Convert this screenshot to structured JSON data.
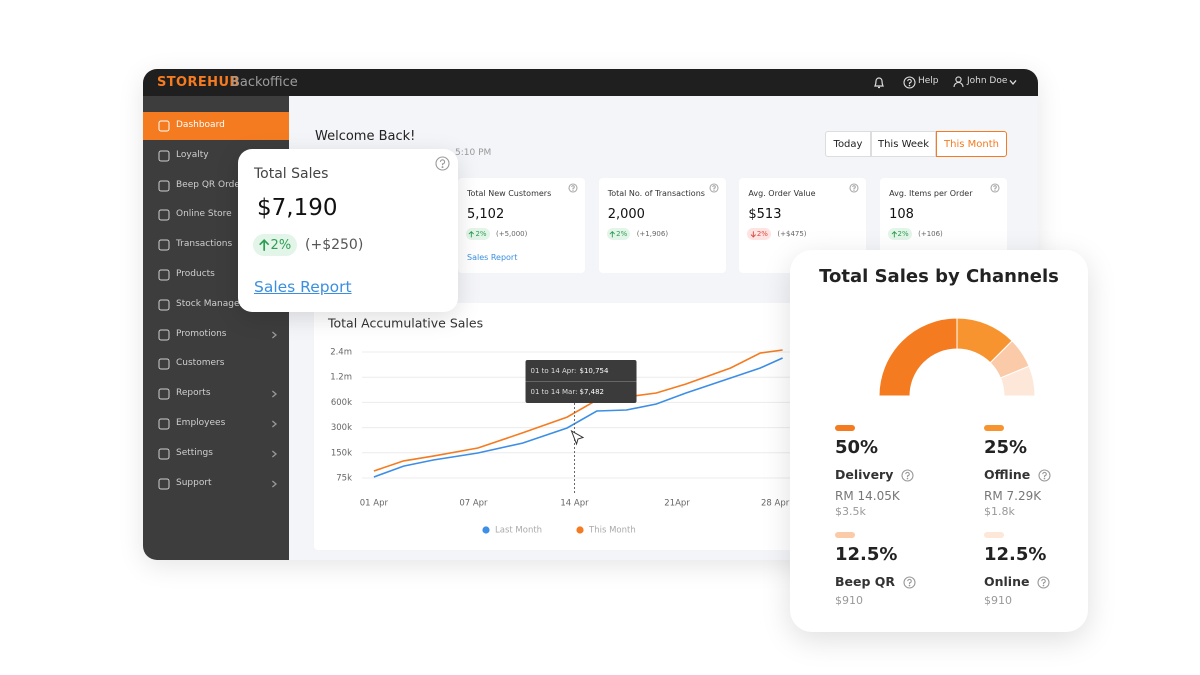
{
  "topbar": {
    "brand": "STOREHUB",
    "product": "Backoffice",
    "help": "Help",
    "user": "John Doe"
  },
  "sidebar": {
    "active": 0,
    "items": [
      {
        "label": "Dashboard",
        "submenu": false
      },
      {
        "label": "Loyalty",
        "submenu": false
      },
      {
        "label": "Beep QR Order",
        "submenu": false
      },
      {
        "label": "Online Store",
        "submenu": false
      },
      {
        "label": "Transactions",
        "submenu": false
      },
      {
        "label": "Products",
        "submenu": false
      },
      {
        "label": "Stock Management",
        "submenu": false
      },
      {
        "label": "Promotions",
        "submenu": true
      },
      {
        "label": "Customers",
        "submenu": false
      },
      {
        "label": "Reports",
        "submenu": true
      },
      {
        "label": "Employees",
        "submenu": true
      },
      {
        "label": "Settings",
        "submenu": true
      },
      {
        "label": "Support",
        "submenu": true
      }
    ]
  },
  "header": {
    "welcome": "Welcome Back!",
    "updated": "5:10 PM",
    "periods": [
      "Today",
      "This Week",
      "This Month"
    ],
    "active_period": 2
  },
  "total_sales_card": {
    "title": "Total Sales",
    "value": "$7,190",
    "change": "2%",
    "direction": "up",
    "delta": "(+$250)",
    "link": "Sales Report"
  },
  "kpis": [
    {
      "title": "Total New Customers",
      "value": "5,102",
      "change": "2%",
      "direction": "up",
      "delta": "(+5,000)",
      "link": "Sales Report"
    },
    {
      "title": "Total No. of Transactions",
      "value": "2,000",
      "change": "2%",
      "direction": "up",
      "delta": "(+1,906)"
    },
    {
      "title": "Avg. Order Value",
      "value": "$513",
      "change": "2%",
      "direction": "down",
      "delta": "(+$475)"
    },
    {
      "title": "Avg. Items per Order",
      "value": "108",
      "change": "2%",
      "direction": "up",
      "delta": "(+106)"
    }
  ],
  "channels": [
    {
      "amount": "RM 14.05K",
      "note": "$3.5k"
    },
    {
      "amount": "RM 7.29K",
      "note": "$1.8k"
    },
    {
      "note": "$910"
    },
    {
      "note": "$910"
    }
  ],
  "chart_data": [
    {
      "type": "line",
      "title": "Total Accumulative Sales",
      "log_scale": true,
      "grid": true,
      "x": [
        1,
        3,
        5,
        8,
        11,
        14,
        16,
        18,
        20,
        22,
        25,
        27,
        28.5
      ],
      "xlim": [
        0.2,
        29
      ],
      "xticks": [
        {
          "value": 1,
          "label": "01 Apr"
        },
        {
          "value": 7.7,
          "label": "07 Apr"
        },
        {
          "value": 14.5,
          "label": "14 Apr"
        },
        {
          "value": 21.4,
          "label": "21Apr"
        },
        {
          "value": 28,
          "label": "28 Apr"
        }
      ],
      "ylim": [
        75000,
        2400000
      ],
      "yticks": [
        {
          "value": 75000,
          "label": "75k"
        },
        {
          "value": 150000,
          "label": "150k"
        },
        {
          "value": 300000,
          "label": "300k"
        },
        {
          "value": 600000,
          "label": "600k"
        },
        {
          "value": 1200000,
          "label": "1.2m"
        },
        {
          "value": 2400000,
          "label": "2.4m"
        }
      ],
      "series": [
        {
          "name": "Last Month",
          "color": "#3d8ee6",
          "values": [
            77000,
            104000,
            123000,
            149000,
            196000,
            297000,
            474000,
            487000,
            574000,
            777000,
            1174000,
            1545000,
            2034000
          ]
        },
        {
          "name": "This Month",
          "color": "#f47b20",
          "values": [
            91000,
            120000,
            137000,
            171000,
            259000,
            401000,
            641000,
            696000,
            777000,
            995000,
            1545000,
            2334000,
            2535000
          ]
        }
      ],
      "tooltip": {
        "x": 14.5,
        "lines": [
          {
            "label": "01 to 14 Apr:",
            "amount": "$10,754"
          },
          {
            "label": "01 to 14 Mar:",
            "amount": "$7,482"
          }
        ]
      }
    },
    {
      "type": "pie",
      "title": "Total Sales by Channels",
      "half": true,
      "categories": [
        "Delivery",
        "Offline",
        "Beep QR",
        "Online"
      ],
      "values": [
        50,
        25,
        12.5,
        12.5
      ],
      "value_labels": [
        "50%",
        "25%",
        "12.5%",
        "12.5%"
      ],
      "colors": [
        "#f47b20",
        "#f8942f",
        "#fbcaa8",
        "#fde7d9"
      ]
    }
  ]
}
